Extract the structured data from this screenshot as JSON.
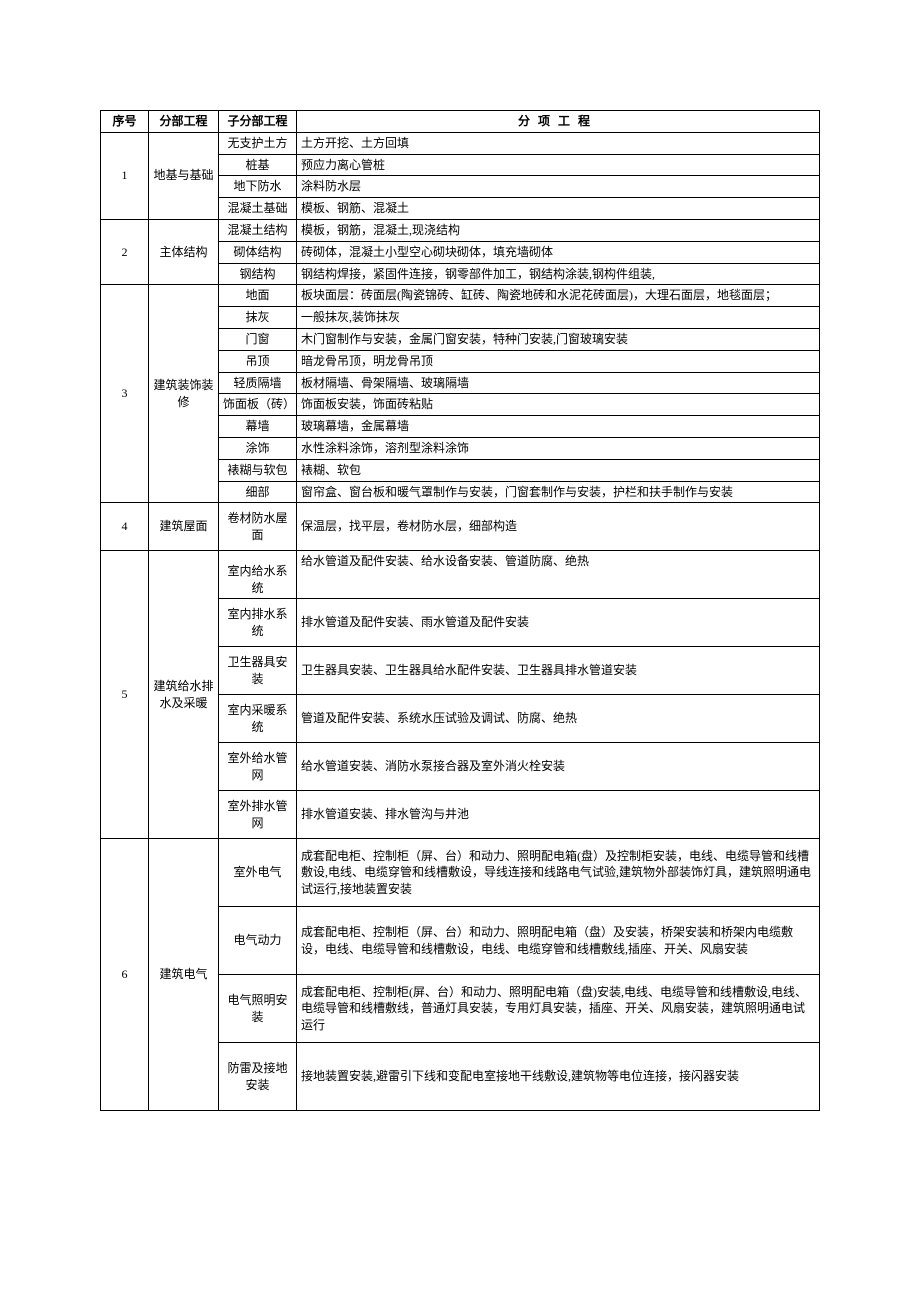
{
  "headers": {
    "c1": "序号",
    "c2": "分部工程",
    "c3": "子分部工程",
    "c4": "分项工程"
  },
  "sections": [
    {
      "num": "1",
      "name": "地基与基础",
      "rows": [
        {
          "sub": "无支护土方",
          "detail": "土方开挖、土方回填"
        },
        {
          "sub": "桩基",
          "detail": "预应力离心管桩"
        },
        {
          "sub": "地下防水",
          "detail": "涂料防水层"
        },
        {
          "sub": "混凝土基础",
          "detail": "模板、钢筋、混凝土"
        }
      ]
    },
    {
      "num": "2",
      "name": "主体结构",
      "rows": [
        {
          "sub": "混凝土结构",
          "detail": "模板，钢筋，混凝土,现浇结构"
        },
        {
          "sub": "砌体结构",
          "detail": "砖砌体，混凝土小型空心砌块砌体，填充墙砌体"
        },
        {
          "sub": "钢结构",
          "detail": "钢结构焊接，紧固件连接，钢零部件加工，钢结构涂装,钢构件组装,"
        }
      ]
    },
    {
      "num": "3",
      "name": "建筑装饰装修",
      "rows": [
        {
          "sub": "地面",
          "detail": "板块面层：砖面层(陶瓷锦砖、缸砖、陶瓷地砖和水泥花砖面层)，大理石面层，地毯面层；"
        },
        {
          "sub": "抹灰",
          "detail": "一般抹灰,装饰抹灰"
        },
        {
          "sub": "门窗",
          "detail": "木门窗制作与安装，金属门窗安装，特种门安装,门窗玻璃安装"
        },
        {
          "sub": "吊顶",
          "detail": "暗龙骨吊顶，明龙骨吊顶"
        },
        {
          "sub": "轻质隔墙",
          "detail": "板材隔墙、骨架隔墙、玻璃隔墙"
        },
        {
          "sub": "饰面板（砖）",
          "detail": "饰面板安装，饰面砖粘贴"
        },
        {
          "sub": "幕墙",
          "detail": "玻璃幕墙，金属幕墙"
        },
        {
          "sub": "涂饰",
          "detail": "水性涂料涂饰，溶剂型涂料涂饰"
        },
        {
          "sub": "裱糊与软包",
          "detail": "裱糊、软包"
        },
        {
          "sub": "细部",
          "detail": "窗帘盒、窗台板和暖气罩制作与安装，门窗套制作与安装，护栏和扶手制作与安装"
        }
      ]
    },
    {
      "num": "4",
      "name": "建筑屋面",
      "rows": [
        {
          "sub": "卷材防水屋面",
          "detail": "保温层，找平层，卷材防水层，细部构造"
        }
      ]
    },
    {
      "num": "5",
      "name": "建筑给水排水及采暖",
      "rows": [
        {
          "sub": "室内给水系统",
          "detail": "给水管道及配件安装、给水设备安装、管道防腐、绝热"
        },
        {
          "sub": "室内排水系统",
          "detail": "排水管道及配件安装、雨水管道及配件安装"
        },
        {
          "sub": "卫生器具安装",
          "detail": "卫生器具安装、卫生器具给水配件安装、卫生器具排水管道安装"
        },
        {
          "sub": "室内采暖系统",
          "detail": "管道及配件安装、系统水压试验及调试、防腐、绝热"
        },
        {
          "sub": "室外给水管网",
          "detail": "给水管道安装、消防水泵接合器及室外消火栓安装"
        },
        {
          "sub": "室外排水管网",
          "detail": "排水管道安装、排水管沟与井池"
        }
      ]
    },
    {
      "num": "6",
      "name": "建筑电气",
      "rows": [
        {
          "sub": "室外电气",
          "detail": "成套配电柜、控制柜（屏、台）和动力、照明配电箱(盘）及控制柜安装，电线、电缆导管和线槽敷设,电线、电缆穿管和线槽敷设，导线连接和线路电气试验,建筑物外部装饰灯具，建筑照明通电试运行,接地装置安装"
        },
        {
          "sub": "电气动力",
          "detail": "成套配电柜、控制柜（屏、台）和动力、照明配电箱（盘）及安装，桥架安装和桥架内电缆敷设，电线、电缆导管和线槽敷设，电线、电缆穿管和线槽敷线,插座、开关、风扇安装"
        },
        {
          "sub": "电气照明安装",
          "detail": "成套配电柜、控制柜(屏、台）和动力、照明配电箱（盘)安装,电线、电缆导管和线槽敷设,电线、电缆导管和线槽敷线，普通灯具安装，专用灯具安装，插座、开关、风扇安装，建筑照明通电试运行"
        },
        {
          "sub": "防雷及接地安装",
          "detail": "接地装置安装,避雷引下线和变配电室接地干线敷设,建筑物等电位连接，接闪器安装"
        }
      ]
    }
  ]
}
